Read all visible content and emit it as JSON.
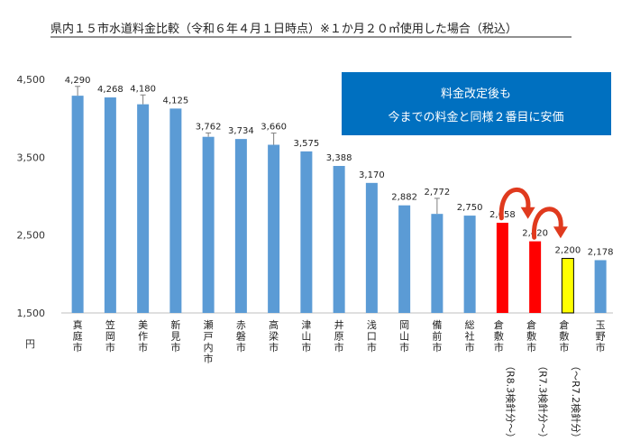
{
  "chart_data": {
    "type": "bar",
    "title": "県内１５市水道料金比較（令和６年４月１日時点）※１か月２０㎥使用した場合（税込）",
    "ylabel": "円",
    "ylim": [
      1500,
      4500
    ],
    "yticks": [
      "1,500",
      "2,500",
      "3,500",
      "4,500"
    ],
    "grid": false,
    "categories": [
      "真庭市",
      "笠岡市",
      "美作市",
      "新見市",
      "瀬戸内市",
      "赤磐市",
      "高梁市",
      "津山市",
      "井原市",
      "浅口市",
      "岡山市",
      "備前市",
      "総社市",
      "倉敷市",
      "倉敷市",
      "倉敷市",
      "玉野市"
    ],
    "category_notes": [
      "",
      "",
      "",
      "",
      "",
      "",
      "",
      "",
      "",
      "",
      "",
      "",
      "",
      "（R8.3検針分～）",
      "（R7.3検針分～）",
      "（～R7.2検針分）",
      ""
    ],
    "values": [
      4290,
      4268,
      4180,
      4125,
      3762,
      3734,
      3660,
      3575,
      3388,
      3170,
      2882,
      2772,
      2750,
      2658,
      2420,
      2200,
      2178
    ],
    "value_labels": [
      "4,290",
      "4,268",
      "4,180",
      "4,125",
      "3,762",
      "3,734",
      "3,660",
      "3,575",
      "3,388",
      "3,170",
      "2,882",
      "2,772",
      "2,750",
      "2,658",
      "2,420",
      "2,200",
      "2,178"
    ],
    "errors": [
      120,
      0,
      120,
      0,
      50,
      0,
      150,
      0,
      0,
      0,
      0,
      200,
      0,
      0,
      0,
      0,
      0
    ],
    "bar_colors": [
      "#5b9bd5",
      "#5b9bd5",
      "#5b9bd5",
      "#5b9bd5",
      "#5b9bd5",
      "#5b9bd5",
      "#5b9bd5",
      "#5b9bd5",
      "#5b9bd5",
      "#5b9bd5",
      "#5b9bd5",
      "#5b9bd5",
      "#5b9bd5",
      "#ff0000",
      "#ff0000",
      "#ffff00",
      "#5b9bd5"
    ],
    "annotation": {
      "lines": [
        "料金改定後も",
        "今までの料金と同様２番目に安価"
      ],
      "color": "#0070c0"
    },
    "arrow_color": "#e03a1e"
  }
}
